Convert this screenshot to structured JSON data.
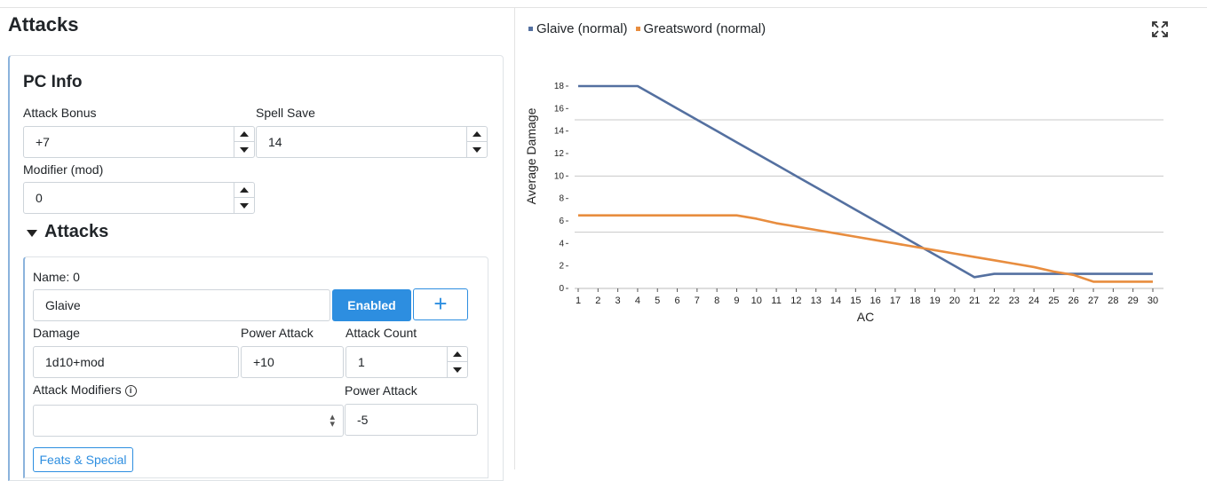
{
  "page": {
    "title": "Attacks"
  },
  "pc_info": {
    "title": "PC Info",
    "attack_bonus": {
      "label": "Attack Bonus",
      "value": "+7"
    },
    "spell_save": {
      "label": "Spell Save",
      "value": "14"
    },
    "modifier": {
      "label": "Modifier (mod)",
      "value": "0"
    }
  },
  "attacks": {
    "title": "Attacks",
    "item": {
      "name_label": "Name: 0",
      "name_value": "Glaive",
      "enabled_label": "Enabled",
      "add_label": "+",
      "damage": {
        "label": "Damage",
        "value": "1d10+mod"
      },
      "power_attack": {
        "label": "Power Attack",
        "value": "+10"
      },
      "attack_count": {
        "label": "Attack Count",
        "value": "1"
      },
      "attack_modifiers": {
        "label": "Attack Modifiers",
        "value": ""
      },
      "power_attack_penalty": {
        "label": "Power Attack",
        "value": "-5"
      },
      "feats_label": "Feats & Special"
    }
  },
  "icons": {
    "info": "info-icon",
    "expand": "expand-icon",
    "caret": "caret-down-icon"
  },
  "chart_data": {
    "type": "line",
    "xlabel": "AC",
    "ylabel": "Average Damage",
    "xlim": [
      1,
      30
    ],
    "ylim": [
      0,
      18
    ],
    "yticks": [
      0,
      2,
      4,
      6,
      8,
      10,
      12,
      14,
      16,
      18
    ],
    "x": [
      1,
      2,
      3,
      4,
      5,
      6,
      7,
      8,
      9,
      10,
      11,
      12,
      13,
      14,
      15,
      16,
      17,
      18,
      19,
      20,
      21,
      22,
      23,
      24,
      25,
      26,
      27,
      28,
      29,
      30
    ],
    "legend_position": "top-left",
    "gridlines_y": [
      5,
      10,
      15
    ],
    "series": [
      {
        "name": "Glaive (normal)",
        "color": "#5470a0",
        "values": [
          18,
          18,
          18,
          18,
          17,
          16,
          15,
          14,
          13,
          12,
          11,
          10,
          9,
          8,
          7,
          6,
          5,
          4,
          3,
          2,
          1,
          1.3,
          1.3,
          1.3,
          1.3,
          1.3,
          1.3,
          1.3,
          1.3,
          1.3
        ]
      },
      {
        "name": "Greatsword (normal)",
        "color": "#e88d3f",
        "values": [
          6.5,
          6.5,
          6.5,
          6.5,
          6.5,
          6.5,
          6.5,
          6.5,
          6.5,
          6.2,
          5.8,
          5.5,
          5.2,
          4.9,
          4.6,
          4.3,
          4.0,
          3.7,
          3.4,
          3.1,
          2.8,
          2.5,
          2.2,
          1.9,
          1.5,
          1.2,
          0.6,
          0.6,
          0.6,
          0.6
        ]
      }
    ]
  }
}
